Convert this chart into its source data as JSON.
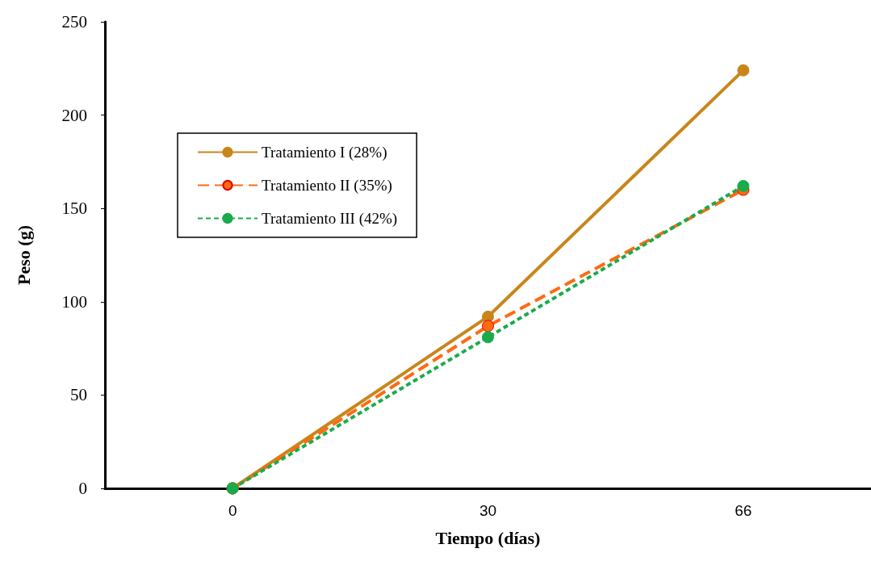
{
  "chart_data": {
    "type": "line",
    "xlabel": "Tiempo (días)",
    "ylabel": "Peso (g)",
    "categories": [
      "0",
      "30",
      "66"
    ],
    "series": [
      {
        "name": "Tratamiento I (28%)",
        "color": "#c8861a",
        "values": [
          0,
          92,
          224
        ],
        "line_style": "solid"
      },
      {
        "name": "Tratamiento II (35%)",
        "color": "#ff6a13",
        "values": [
          0,
          87,
          160
        ],
        "line_style": "dashed"
      },
      {
        "name": "Tratamiento III (42%)",
        "color": "#1aab4b",
        "values": [
          0,
          81,
          162
        ],
        "line_style": "dotted"
      }
    ],
    "ylim": [
      0,
      250
    ],
    "yticks": [
      0,
      50,
      100,
      150,
      200,
      250
    ],
    "grid": false,
    "legend": "top left",
    "marker": "circle"
  }
}
